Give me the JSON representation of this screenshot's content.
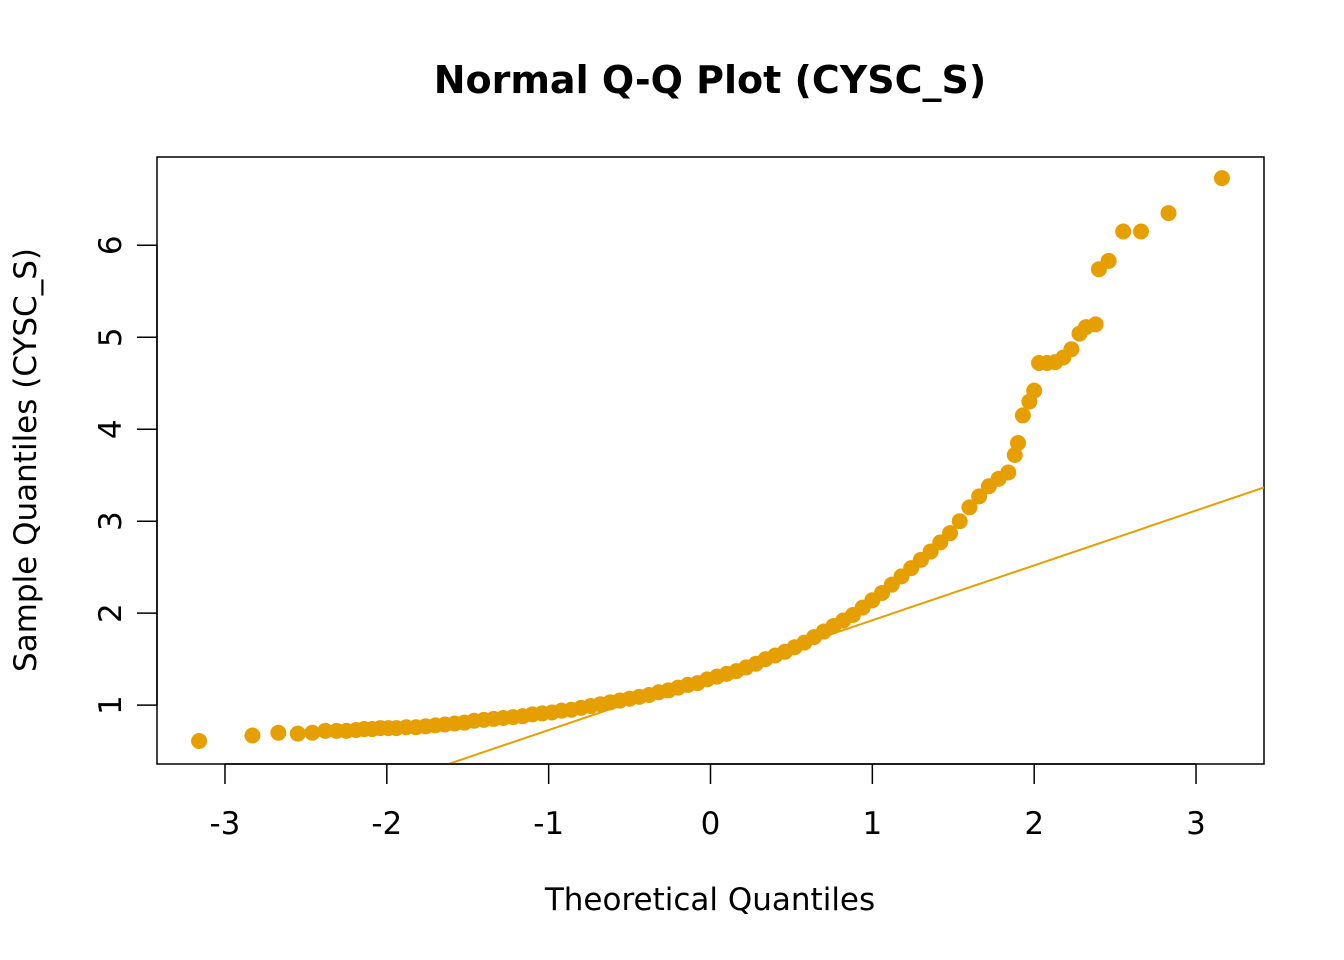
{
  "chart_data": {
    "type": "scatter",
    "title": "Normal Q-Q Plot (CYSC_S)",
    "xlabel": "Theoretical Quantiles",
    "ylabel": "Sample Quantiles (CYSC_S)",
    "xlim": [
      -3.42,
      3.42
    ],
    "ylim": [
      0.36,
      6.96
    ],
    "x_ticks": [
      -3,
      -2,
      -1,
      0,
      1,
      2,
      3
    ],
    "x_tick_labels": [
      "-3",
      "-2",
      "-1",
      "0",
      "1",
      "2",
      "3"
    ],
    "y_ticks": [
      1,
      2,
      3,
      4,
      5,
      6
    ],
    "y_tick_labels": [
      "1",
      "2",
      "3",
      "4",
      "5",
      "6"
    ],
    "grid": false,
    "point_color": "#E69F00",
    "line_color": "#E69F00",
    "reference_line": {
      "slope": 0.5967,
      "intercept": 1.3262
    },
    "series": [
      {
        "points": [
          [
            -3.16,
            0.61
          ],
          [
            -2.83,
            0.67
          ],
          [
            -2.67,
            0.7
          ],
          [
            -2.55,
            0.69
          ],
          [
            -2.46,
            0.7
          ],
          [
            -2.38,
            0.72
          ],
          [
            -2.31,
            0.72
          ],
          [
            -2.25,
            0.72
          ],
          [
            -2.19,
            0.73
          ],
          [
            -2.14,
            0.74
          ],
          [
            -2.09,
            0.74
          ],
          [
            -2.04,
            0.75
          ],
          [
            -1.99,
            0.75
          ],
          [
            -1.94,
            0.75
          ],
          [
            -1.88,
            0.76
          ],
          [
            -1.82,
            0.76
          ],
          [
            -1.76,
            0.77
          ],
          [
            -1.7,
            0.78
          ],
          [
            -1.64,
            0.79
          ],
          [
            -1.58,
            0.8
          ],
          [
            -1.52,
            0.81
          ],
          [
            -1.46,
            0.83
          ],
          [
            -1.4,
            0.84
          ],
          [
            -1.34,
            0.85
          ],
          [
            -1.28,
            0.86
          ],
          [
            -1.22,
            0.87
          ],
          [
            -1.16,
            0.88
          ],
          [
            -1.1,
            0.9
          ],
          [
            -1.04,
            0.91
          ],
          [
            -0.98,
            0.92
          ],
          [
            -0.92,
            0.94
          ],
          [
            -0.86,
            0.95
          ],
          [
            -0.8,
            0.97
          ],
          [
            -0.74,
            0.99
          ],
          [
            -0.68,
            1.01
          ],
          [
            -0.62,
            1.03
          ],
          [
            -0.56,
            1.05
          ],
          [
            -0.5,
            1.07
          ],
          [
            -0.44,
            1.09
          ],
          [
            -0.38,
            1.11
          ],
          [
            -0.32,
            1.14
          ],
          [
            -0.26,
            1.16
          ],
          [
            -0.2,
            1.19
          ],
          [
            -0.14,
            1.22
          ],
          [
            -0.08,
            1.24
          ],
          [
            -0.02,
            1.28
          ],
          [
            0.04,
            1.31
          ],
          [
            0.1,
            1.34
          ],
          [
            0.16,
            1.37
          ],
          [
            0.22,
            1.41
          ],
          [
            0.28,
            1.45
          ],
          [
            0.34,
            1.5
          ],
          [
            0.4,
            1.54
          ],
          [
            0.46,
            1.58
          ],
          [
            0.52,
            1.63
          ],
          [
            0.58,
            1.68
          ],
          [
            0.64,
            1.74
          ],
          [
            0.7,
            1.8
          ],
          [
            0.76,
            1.86
          ],
          [
            0.82,
            1.92
          ],
          [
            0.88,
            1.98
          ],
          [
            0.94,
            2.06
          ],
          [
            1.0,
            2.14
          ],
          [
            1.06,
            2.22
          ],
          [
            1.12,
            2.31
          ],
          [
            1.18,
            2.4
          ],
          [
            1.24,
            2.49
          ],
          [
            1.3,
            2.58
          ],
          [
            1.36,
            2.67
          ],
          [
            1.42,
            2.77
          ],
          [
            1.48,
            2.87
          ],
          [
            1.54,
            3.0
          ],
          [
            1.6,
            3.15
          ],
          [
            1.66,
            3.27
          ],
          [
            1.72,
            3.38
          ],
          [
            1.78,
            3.46
          ],
          [
            1.84,
            3.53
          ],
          [
            1.88,
            3.72
          ],
          [
            1.9,
            3.85
          ],
          [
            1.93,
            4.15
          ],
          [
            1.97,
            4.3
          ],
          [
            2.0,
            4.42
          ],
          [
            2.03,
            4.72
          ],
          [
            2.08,
            4.72
          ],
          [
            2.13,
            4.73
          ],
          [
            2.18,
            4.78
          ],
          [
            2.23,
            4.87
          ],
          [
            2.28,
            5.04
          ],
          [
            2.32,
            5.11
          ],
          [
            2.38,
            5.14
          ],
          [
            2.4,
            5.74
          ],
          [
            2.46,
            5.83
          ],
          [
            2.55,
            6.15
          ],
          [
            2.66,
            6.15
          ],
          [
            2.83,
            6.35
          ],
          [
            3.16,
            6.73
          ]
        ]
      }
    ]
  }
}
